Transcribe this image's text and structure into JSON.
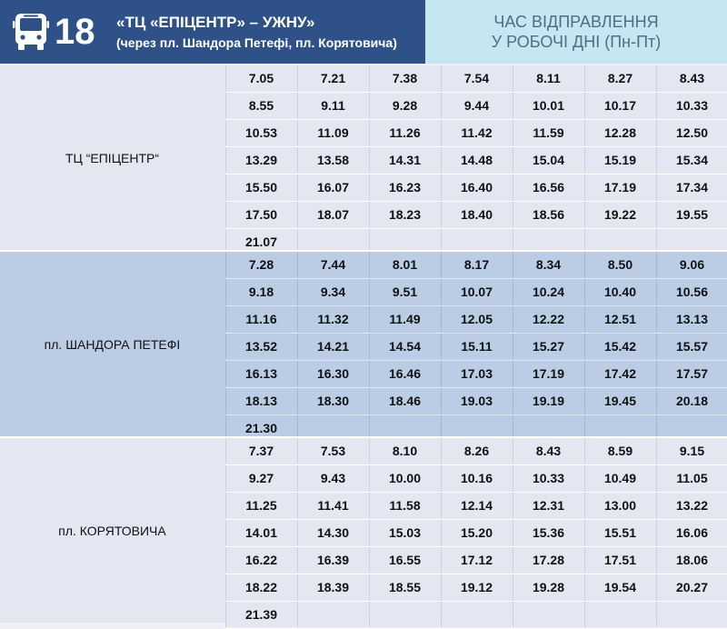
{
  "header": {
    "route_number": "18",
    "route_name": "«ТЦ «ЕПІЦЕНТР» – УЖНУ»",
    "route_via": "(через пл. Шандора Петефі, пл. Корятовича)",
    "depart_line1": "ЧАС ВІДПРАВЛЕННЯ",
    "depart_line2": "У РОБОЧІ ДНІ (Пн-Пт)",
    "icon": "bus-icon",
    "colors": {
      "route_bg": "#2e5287",
      "depart_bg": "#c4e7f1"
    }
  },
  "sections": [
    {
      "stop": "ТЦ “ЕПІЦЕНТР“",
      "rows": [
        [
          "7.05",
          "7.21",
          "7.38",
          "7.54",
          "8.11",
          "8.27",
          "8.43"
        ],
        [
          "8.55",
          "9.11",
          "9.28",
          "9.44",
          "10.01",
          "10.17",
          "10.33"
        ],
        [
          "10.53",
          "11.09",
          "11.26",
          "11.42",
          "11.59",
          "12.28",
          "12.50"
        ],
        [
          "13.29",
          "13.58",
          "14.31",
          "14.48",
          "15.04",
          "15.19",
          "15.34"
        ],
        [
          "15.50",
          "16.07",
          "16.23",
          "16.40",
          "16.56",
          "17.19",
          "17.34"
        ],
        [
          "17.50",
          "18.07",
          "18.23",
          "18.40",
          "18.56",
          "19.22",
          "19.55"
        ],
        [
          "21.07",
          "",
          "",
          "",
          "",
          "",
          ""
        ]
      ]
    },
    {
      "stop": "пл. ШАНДОРА ПЕТЕФІ",
      "rows": [
        [
          "7.28",
          "7.44",
          "8.01",
          "8.17",
          "8.34",
          "8.50",
          "9.06"
        ],
        [
          "9.18",
          "9.34",
          "9.51",
          "10.07",
          "10.24",
          "10.40",
          "10.56"
        ],
        [
          "11.16",
          "11.32",
          "11.49",
          "12.05",
          "12.22",
          "12.51",
          "13.13"
        ],
        [
          "13.52",
          "14.21",
          "14.54",
          "15.11",
          "15.27",
          "15.42",
          "15.57"
        ],
        [
          "16.13",
          "16.30",
          "16.46",
          "17.03",
          "17.19",
          "17.42",
          "17.57"
        ],
        [
          "18.13",
          "18.30",
          "18.46",
          "19.03",
          "19.19",
          "19.45",
          "20.18"
        ],
        [
          "21.30",
          "",
          "",
          "",
          "",
          "",
          ""
        ]
      ]
    },
    {
      "stop": "пл. КОРЯТОВИЧА",
      "rows": [
        [
          "7.37",
          "7.53",
          "8.10",
          "8.26",
          "8.43",
          "8.59",
          "9.15"
        ],
        [
          "9.27",
          "9.43",
          "10.00",
          "10.16",
          "10.33",
          "10.49",
          "11.05"
        ],
        [
          "11.25",
          "11.41",
          "11.58",
          "12.14",
          "12.31",
          "13.00",
          "13.22"
        ],
        [
          "14.01",
          "14.30",
          "15.03",
          "15.20",
          "15.36",
          "15.51",
          "16.06"
        ],
        [
          "16.22",
          "16.39",
          "16.55",
          "17.12",
          "17.28",
          "17.51",
          "18.06"
        ],
        [
          "18.22",
          "18.39",
          "18.55",
          "19.12",
          "19.28",
          "19.54",
          "20.27"
        ],
        [
          "21.39",
          "",
          "",
          "",
          "",
          "",
          ""
        ]
      ]
    }
  ]
}
